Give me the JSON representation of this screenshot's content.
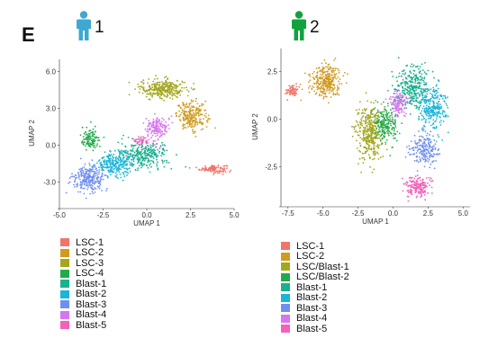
{
  "panel_label": "E",
  "patients": [
    {
      "number": "1",
      "icon": "person-icon",
      "color": "#3ea8d3"
    },
    {
      "number": "2",
      "icon": "person-icon",
      "color": "#12a23d"
    }
  ],
  "chart_data": [
    {
      "type": "scatter",
      "title": "",
      "xlabel": "UMAP 1",
      "ylabel": "UMAP 2",
      "xlim": [
        -5.0,
        5.0
      ],
      "ylim": [
        -5.0,
        7.0
      ],
      "x_ticks": [
        "-5.0",
        "-2.5",
        "0.0",
        "2.5",
        "5.0"
      ],
      "x_tick_values": [
        -5.0,
        -2.5,
        0.0,
        2.5,
        5.0
      ],
      "y_ticks": [
        "6.0",
        "3.0",
        "0.0",
        "-3.0"
      ],
      "y_tick_values": [
        6.0,
        3.0,
        0.0,
        -3.0
      ],
      "grid": false,
      "legend_position": "bottom",
      "series": [
        {
          "name": "LSC-1",
          "color": "#f0756a",
          "center": [
            3.8,
            -1.9
          ],
          "spread": [
            0.7,
            0.3
          ],
          "count": 110
        },
        {
          "name": "LSC-2",
          "color": "#d09a1e",
          "center": [
            2.6,
            2.4
          ],
          "spread": [
            0.8,
            1.0
          ],
          "count": 230
        },
        {
          "name": "LSC-3",
          "color": "#a3a71e",
          "center": [
            0.9,
            4.6
          ],
          "spread": [
            1.2,
            0.7
          ],
          "count": 300
        },
        {
          "name": "LSC-4",
          "color": "#22ab4a",
          "center": [
            -3.2,
            0.5
          ],
          "spread": [
            0.5,
            0.8
          ],
          "count": 110
        },
        {
          "name": "Blast-1",
          "color": "#1bb08f",
          "center": [
            -0.2,
            -0.8
          ],
          "spread": [
            1.3,
            1.0
          ],
          "count": 300
        },
        {
          "name": "Blast-2",
          "color": "#1cb4d8",
          "center": [
            -1.8,
            -1.5
          ],
          "spread": [
            1.0,
            0.9
          ],
          "count": 240
        },
        {
          "name": "Blast-3",
          "color": "#6f8ff0",
          "center": [
            -3.3,
            -2.7
          ],
          "spread": [
            0.8,
            0.9
          ],
          "count": 260
        },
        {
          "name": "Blast-4",
          "color": "#d775f0",
          "center": [
            0.6,
            1.4
          ],
          "spread": [
            0.6,
            0.9
          ],
          "count": 170
        },
        {
          "name": "Blast-5",
          "color": "#f162b8",
          "center": [
            -0.3,
            0.4
          ],
          "spread": [
            0.4,
            0.4
          ],
          "count": 40
        }
      ]
    },
    {
      "type": "scatter",
      "title": "",
      "xlabel": "UMAP 1",
      "ylabel": "UMAP 2",
      "xlim": [
        -8.0,
        5.5
      ],
      "ylim": [
        -4.5,
        3.7
      ],
      "x_ticks": [
        "-7.5",
        "-5.0",
        "-2.5",
        "0.0",
        "2.5",
        "5.0"
      ],
      "x_tick_values": [
        -7.5,
        -5.0,
        -2.5,
        0.0,
        2.5,
        5.0
      ],
      "y_ticks": [
        "2.5",
        "0.0",
        "-2.5"
      ],
      "y_tick_values": [
        2.5,
        0.0,
        -2.5
      ],
      "grid": false,
      "legend_position": "bottom",
      "series": [
        {
          "name": "LSC-1",
          "color": "#f0756a",
          "center": [
            -7.2,
            1.5
          ],
          "spread": [
            0.35,
            0.3
          ],
          "count": 70
        },
        {
          "name": "LSC-2",
          "color": "#d09a1e",
          "center": [
            -4.8,
            2.0
          ],
          "spread": [
            1.0,
            0.8
          ],
          "count": 300
        },
        {
          "name": "LSC/Blast-1",
          "color": "#a3a71e",
          "center": [
            -1.7,
            -0.7
          ],
          "spread": [
            0.9,
            1.2
          ],
          "count": 380
        },
        {
          "name": "LSC/Blast-2",
          "color": "#22ab4a",
          "center": [
            -0.5,
            -0.3
          ],
          "spread": [
            0.8,
            0.8
          ],
          "count": 200
        },
        {
          "name": "Blast-1",
          "color": "#1bb08f",
          "center": [
            1.4,
            1.6
          ],
          "spread": [
            1.2,
            1.1
          ],
          "count": 320
        },
        {
          "name": "Blast-2",
          "color": "#1cb4d8",
          "center": [
            2.8,
            0.6
          ],
          "spread": [
            0.9,
            1.0
          ],
          "count": 260
        },
        {
          "name": "Blast-3",
          "color": "#6f8ff0",
          "center": [
            2.2,
            -1.6
          ],
          "spread": [
            0.9,
            0.7
          ],
          "count": 200
        },
        {
          "name": "Blast-4",
          "color": "#d775f0",
          "center": [
            0.4,
            0.9
          ],
          "spread": [
            0.6,
            0.6
          ],
          "count": 130
        },
        {
          "name": "Blast-5",
          "color": "#f162b8",
          "center": [
            1.8,
            -3.5
          ],
          "spread": [
            0.8,
            0.5
          ],
          "count": 170
        }
      ]
    }
  ]
}
